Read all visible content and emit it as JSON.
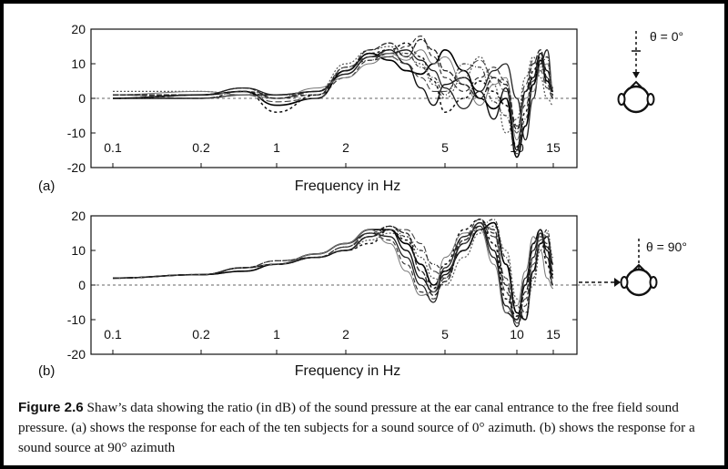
{
  "chart_data": [
    {
      "type": "line",
      "panel_label": "(a)",
      "xlabel": "Frequency in Hz",
      "x_tick_labels": [
        "0.1",
        "0.2",
        "1",
        "2",
        "5",
        "10",
        "15"
      ],
      "x_ticks": [
        0.1,
        0.2,
        1,
        2,
        5,
        10,
        15
      ],
      "ylim": [
        -20,
        20
      ],
      "y_ticks": [
        20,
        10,
        0,
        -10,
        -20
      ],
      "angle_label": "θ = 0°",
      "x": [
        0.1,
        0.2,
        0.5,
        1,
        1.5,
        2,
        2.5,
        3,
        3.5,
        4,
        4.5,
        5,
        6,
        7,
        8,
        9,
        10,
        11,
        12,
        13,
        14,
        15
      ],
      "series": [
        {
          "values": [
            0,
            0,
            1,
            1,
            2,
            7,
            12,
            14,
            10,
            3,
            -2,
            4,
            6,
            2,
            -6,
            3,
            -15,
            2,
            6,
            13,
            8,
            3
          ]
        },
        {
          "values": [
            1,
            1,
            2,
            0,
            1,
            6,
            11,
            12,
            15,
            18,
            12,
            6,
            2,
            6,
            9,
            5,
            -8,
            -2,
            5,
            12,
            4,
            0
          ]
        },
        {
          "values": [
            0,
            1,
            2,
            -2,
            0,
            8,
            13,
            11,
            8,
            7,
            10,
            14,
            8,
            0,
            -3,
            0,
            -17,
            -8,
            4,
            11,
            5,
            2
          ]
        },
        {
          "values": [
            2,
            2,
            1,
            0,
            2,
            10,
            14,
            15,
            12,
            10,
            4,
            0,
            6,
            12,
            4,
            -10,
            -6,
            6,
            12,
            6,
            0,
            -2
          ]
        },
        {
          "values": [
            0,
            1,
            3,
            1,
            2,
            7,
            12,
            13,
            14,
            11,
            8,
            3,
            -3,
            2,
            8,
            10,
            0,
            -12,
            0,
            10,
            14,
            2
          ]
        },
        {
          "values": [
            1,
            0,
            1,
            -1,
            0,
            9,
            12,
            12,
            10,
            6,
            2,
            2,
            8,
            11,
            6,
            2,
            -10,
            4,
            11,
            8,
            3,
            0
          ]
        },
        {
          "values": [
            0,
            1,
            2,
            -4,
            1,
            8,
            13,
            14,
            16,
            12,
            5,
            -4,
            0,
            5,
            2,
            -2,
            -14,
            -4,
            8,
            12,
            6,
            1
          ]
        },
        {
          "values": [
            1,
            2,
            1,
            0,
            3,
            6,
            10,
            13,
            11,
            14,
            10,
            12,
            4,
            -2,
            4,
            6,
            -12,
            0,
            2,
            8,
            10,
            3
          ]
        },
        {
          "values": [
            0,
            0,
            2,
            1,
            1,
            9,
            11,
            14,
            13,
            9,
            6,
            1,
            10,
            9,
            -1,
            -5,
            -16,
            -6,
            6,
            9,
            12,
            0
          ]
        },
        {
          "values": [
            1,
            1,
            3,
            0,
            2,
            8,
            14,
            16,
            12,
            17,
            14,
            8,
            4,
            0,
            6,
            4,
            -9,
            2,
            10,
            14,
            6,
            1
          ]
        }
      ]
    },
    {
      "type": "line",
      "panel_label": "(b)",
      "xlabel": "Frequency in Hz",
      "x_tick_labels": [
        "0.1",
        "0.2",
        "1",
        "2",
        "5",
        "10",
        "15"
      ],
      "x_ticks": [
        0.1,
        0.2,
        1,
        2,
        5,
        10,
        15
      ],
      "ylim": [
        -20,
        20
      ],
      "y_ticks": [
        20,
        10,
        0,
        -10,
        -20
      ],
      "angle_label": "θ = 90°",
      "x": [
        0.1,
        0.2,
        0.5,
        1,
        1.5,
        2,
        2.5,
        3,
        3.5,
        4,
        4.5,
        5,
        6,
        7,
        8,
        9,
        10,
        11,
        12,
        13,
        14,
        15
      ],
      "series": [
        {
          "values": [
            2,
            3,
            5,
            6,
            8,
            10,
            14,
            16,
            10,
            2,
            -2,
            3,
            12,
            18,
            10,
            -8,
            -10,
            0,
            12,
            16,
            10,
            2
          ]
        },
        {
          "values": [
            2,
            3,
            5,
            6,
            8,
            11,
            15,
            13,
            6,
            -2,
            -4,
            2,
            14,
            19,
            15,
            -2,
            -12,
            -6,
            8,
            14,
            12,
            4
          ]
        },
        {
          "values": [
            2,
            3,
            4,
            6,
            9,
            12,
            16,
            16,
            12,
            6,
            0,
            4,
            10,
            16,
            18,
            6,
            -8,
            -10,
            4,
            12,
            14,
            6
          ]
        },
        {
          "values": [
            2,
            3,
            5,
            7,
            8,
            10,
            13,
            15,
            14,
            8,
            2,
            0,
            8,
            15,
            17,
            10,
            -4,
            -8,
            0,
            10,
            15,
            8
          ]
        },
        {
          "values": [
            2,
            3,
            5,
            6,
            9,
            12,
            15,
            14,
            8,
            0,
            -5,
            5,
            14,
            17,
            8,
            -6,
            -10,
            2,
            10,
            15,
            8,
            0
          ]
        },
        {
          "values": [
            2,
            3,
            5,
            7,
            8,
            11,
            14,
            16,
            16,
            12,
            4,
            2,
            12,
            18,
            14,
            2,
            -11,
            -4,
            6,
            13,
            14,
            4
          ]
        },
        {
          "values": [
            2,
            3,
            4,
            6,
            8,
            10,
            12,
            16,
            13,
            6,
            -1,
            6,
            16,
            19,
            12,
            -4,
            -9,
            0,
            12,
            16,
            6,
            0
          ]
        },
        {
          "values": [
            2,
            3,
            5,
            6,
            9,
            12,
            16,
            12,
            4,
            -3,
            -2,
            8,
            15,
            16,
            6,
            -8,
            -6,
            4,
            14,
            10,
            2,
            -1
          ]
        },
        {
          "values": [
            2,
            3,
            5,
            7,
            8,
            11,
            15,
            17,
            14,
            10,
            6,
            4,
            10,
            17,
            19,
            8,
            -6,
            -10,
            2,
            12,
            16,
            6
          ]
        },
        {
          "values": [
            2,
            3,
            5,
            6,
            8,
            10,
            14,
            17,
            15,
            4,
            -3,
            1,
            13,
            18,
            16,
            0,
            -12,
            -2,
            8,
            15,
            11,
            3
          ]
        }
      ]
    }
  ],
  "caption": {
    "label": "Figure 2.6",
    "text": " Shaw’s data showing the ratio (in dB) of the sound pressure at the ear canal entrance to the free field sound pressure. (a) shows the response for each of the ten subjects for a sound source of 0° azimuth. (b) shows the response for a sound source at 90° azimuth"
  }
}
